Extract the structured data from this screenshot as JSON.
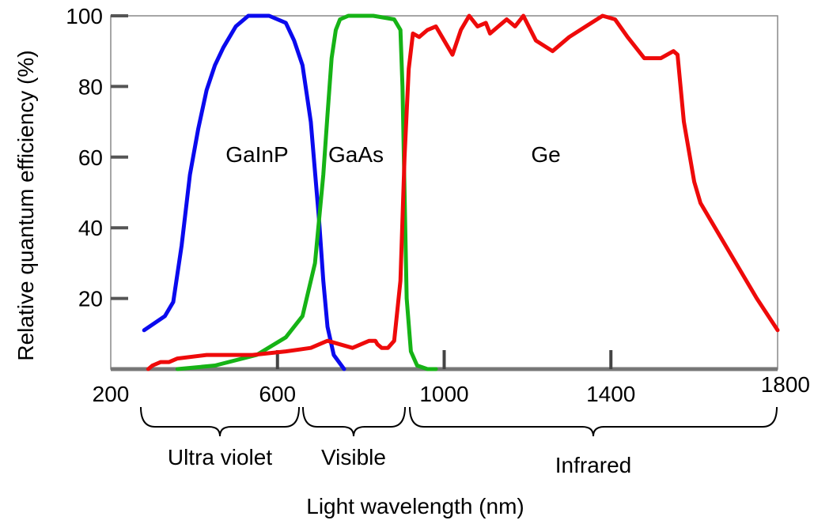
{
  "chart_data": {
    "type": "line",
    "title": "",
    "xlabel": "Light wavelength (nm)",
    "ylabel": "Relative quantum efficiency (%)",
    "xlim": [
      200,
      1800
    ],
    "ylim": [
      0,
      100
    ],
    "x_ticks": [
      200,
      600,
      1000,
      1400,
      1800
    ],
    "y_ticks": [
      20,
      40,
      60,
      80,
      100
    ],
    "grid": false,
    "legend": "none",
    "series": [
      {
        "name": "GaInP",
        "color": "#0a0aee",
        "points": [
          [
            280,
            11
          ],
          [
            330,
            15
          ],
          [
            350,
            19
          ],
          [
            370,
            35
          ],
          [
            390,
            55
          ],
          [
            410,
            68
          ],
          [
            430,
            79
          ],
          [
            450,
            86
          ],
          [
            470,
            91
          ],
          [
            500,
            97
          ],
          [
            530,
            100
          ],
          [
            580,
            100
          ],
          [
            620,
            98
          ],
          [
            640,
            93
          ],
          [
            660,
            86
          ],
          [
            680,
            70
          ],
          [
            700,
            42
          ],
          [
            710,
            25
          ],
          [
            720,
            12
          ],
          [
            735,
            4
          ],
          [
            760,
            0
          ]
        ]
      },
      {
        "name": "GaAs",
        "color": "#16b316",
        "points": [
          [
            360,
            0
          ],
          [
            450,
            1
          ],
          [
            550,
            4
          ],
          [
            620,
            9
          ],
          [
            660,
            15
          ],
          [
            690,
            30
          ],
          [
            710,
            55
          ],
          [
            720,
            72
          ],
          [
            730,
            88
          ],
          [
            740,
            96
          ],
          [
            750,
            99
          ],
          [
            770,
            100
          ],
          [
            830,
            100
          ],
          [
            880,
            99
          ],
          [
            895,
            96
          ],
          [
            900,
            80
          ],
          [
            905,
            50
          ],
          [
            910,
            20
          ],
          [
            920,
            5
          ],
          [
            935,
            1
          ],
          [
            960,
            0
          ],
          [
            980,
            0
          ]
        ]
      },
      {
        "name": "Ge",
        "color": "#ee0a0a",
        "points": [
          [
            290,
            0
          ],
          [
            300,
            1
          ],
          [
            320,
            2
          ],
          [
            340,
            2
          ],
          [
            360,
            3
          ],
          [
            430,
            4
          ],
          [
            540,
            4
          ],
          [
            620,
            5
          ],
          [
            680,
            6
          ],
          [
            700,
            7
          ],
          [
            720,
            8
          ],
          [
            750,
            7
          ],
          [
            780,
            6
          ],
          [
            800,
            7
          ],
          [
            820,
            8
          ],
          [
            835,
            8
          ],
          [
            840,
            7
          ],
          [
            850,
            6
          ],
          [
            865,
            6
          ],
          [
            880,
            8
          ],
          [
            895,
            25
          ],
          [
            905,
            60
          ],
          [
            915,
            85
          ],
          [
            925,
            95
          ],
          [
            940,
            94
          ],
          [
            960,
            96
          ],
          [
            980,
            97
          ],
          [
            1000,
            93
          ],
          [
            1020,
            89
          ],
          [
            1040,
            96
          ],
          [
            1060,
            100
          ],
          [
            1080,
            97
          ],
          [
            1100,
            98
          ],
          [
            1110,
            95
          ],
          [
            1130,
            97
          ],
          [
            1150,
            99
          ],
          [
            1170,
            97
          ],
          [
            1190,
            100
          ],
          [
            1220,
            93
          ],
          [
            1260,
            90
          ],
          [
            1300,
            94
          ],
          [
            1340,
            97
          ],
          [
            1380,
            100
          ],
          [
            1410,
            99
          ],
          [
            1440,
            94
          ],
          [
            1480,
            88
          ],
          [
            1520,
            88
          ],
          [
            1550,
            90
          ],
          [
            1560,
            89
          ],
          [
            1575,
            70
          ],
          [
            1600,
            53
          ],
          [
            1615,
            47
          ],
          [
            1640,
            42
          ],
          [
            1700,
            30
          ],
          [
            1750,
            20
          ],
          [
            1800,
            11
          ]
        ]
      }
    ],
    "curve_labels": [
      "GaInP",
      "GaAs",
      "Ge"
    ],
    "regions": [
      {
        "label": "Ultra violet",
        "x_start": 200,
        "x_end": 590
      },
      {
        "label": "Visible",
        "x_start": 600,
        "x_end": 850
      },
      {
        "label": "Infrared",
        "x_start": 860,
        "x_end": 1800
      }
    ]
  }
}
